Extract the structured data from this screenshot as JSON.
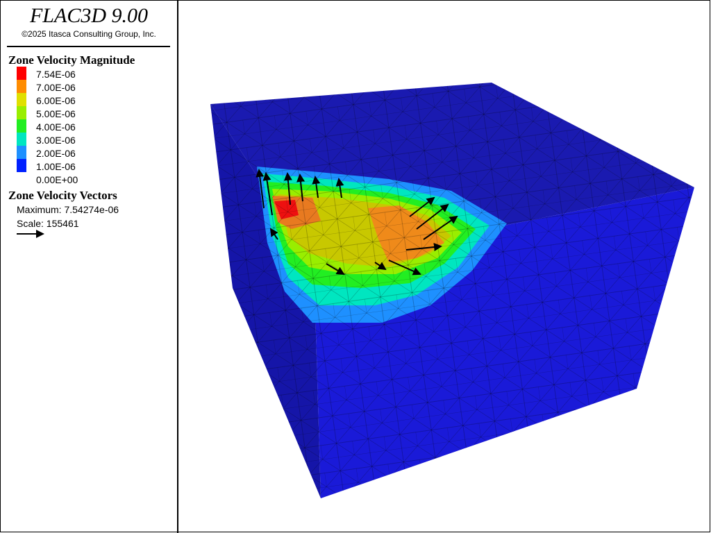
{
  "header": {
    "title": "FLAC3D 9.00",
    "copyright": "©2025 Itasca Consulting Group, Inc."
  },
  "legend": {
    "contour": {
      "title": "Zone Velocity Magnitude",
      "labels": [
        "7.54E-06",
        "7.00E-06",
        "6.00E-06",
        "5.00E-06",
        "4.00E-06",
        "3.00E-06",
        "2.00E-06",
        "1.00E-06",
        "0.00E+00"
      ],
      "colors": [
        "#ff0000",
        "#ff8c00",
        "#e0e000",
        "#99ee00",
        "#22ee22",
        "#00e6c0",
        "#1e90ff",
        "#0020ff"
      ]
    },
    "vectors": {
      "title": "Zone Velocity Vectors",
      "maximum": "Maximum: 7.54274e-06",
      "scale": "Scale: 155461"
    }
  }
}
